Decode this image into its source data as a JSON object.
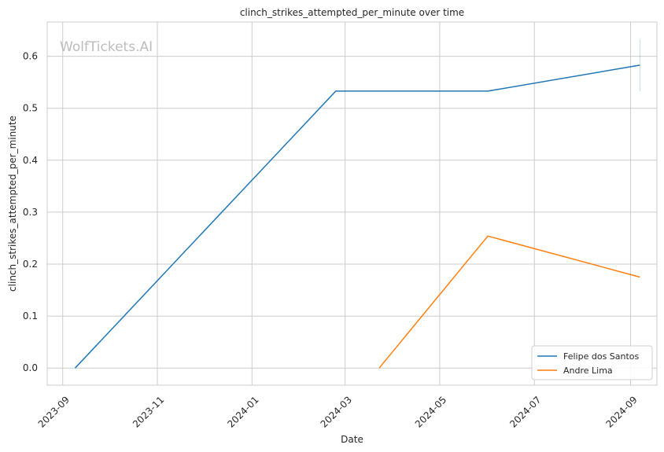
{
  "chart_data": {
    "type": "line",
    "title": "clinch_strikes_attempted_per_minute over time",
    "xlabel": "Date",
    "ylabel": "clinch_strikes_attempted_per_minute",
    "watermark": "WolfTickets.AI",
    "x_ticks": [
      "2023-09",
      "2023-11",
      "2024-01",
      "2024-03",
      "2024-05",
      "2024-07",
      "2024-09"
    ],
    "y_ticks": [
      "0.0",
      "0.1",
      "0.2",
      "0.3",
      "0.4",
      "0.5",
      "0.6"
    ],
    "ylim": [
      -0.033,
      0.666
    ],
    "xlim": [
      "2023-08-22",
      "2024-09-18"
    ],
    "grid": true,
    "legend_position": "lower-right",
    "series": [
      {
        "name": "Felipe dos Santos",
        "color": "#1f77b4",
        "points": [
          {
            "x": "2023-09-09",
            "y": 0.0
          },
          {
            "x": "2024-02-24",
            "y": 0.533
          },
          {
            "x": "2024-06-01",
            "y": 0.533
          },
          {
            "x": "2024-09-07",
            "y": 0.583
          }
        ]
      },
      {
        "name": "Andre Lima",
        "color": "#ff7f0e",
        "points": [
          {
            "x": "2024-03-23",
            "y": 0.0
          },
          {
            "x": "2024-06-01",
            "y": 0.254
          },
          {
            "x": "2024-09-07",
            "y": 0.175
          }
        ]
      }
    ]
  }
}
